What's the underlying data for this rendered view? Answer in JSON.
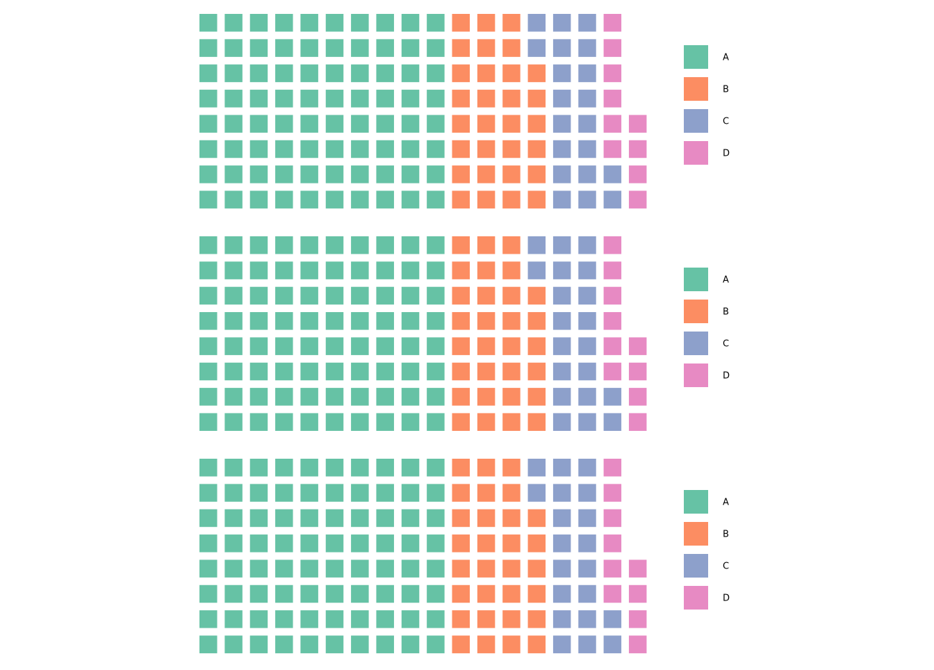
{
  "chart_data": [
    {
      "type": "waffle",
      "rows": 8,
      "categories": [
        "A",
        "B",
        "C",
        "D"
      ],
      "values": [
        80,
        30,
        20,
        10
      ],
      "legend": {
        "position": "right",
        "entries": [
          "A",
          "B",
          "C",
          "D"
        ]
      }
    },
    {
      "type": "waffle",
      "rows": 8,
      "categories": [
        "A",
        "B",
        "C",
        "D"
      ],
      "values": [
        80,
        30,
        20,
        10
      ],
      "legend": {
        "position": "right",
        "entries": [
          "A",
          "B",
          "C",
          "D"
        ]
      }
    },
    {
      "type": "waffle",
      "rows": 8,
      "categories": [
        "A",
        "B",
        "C",
        "D"
      ],
      "values": [
        80,
        30,
        20,
        10
      ],
      "legend": {
        "position": "right",
        "entries": [
          "A",
          "B",
          "C",
          "D"
        ]
      }
    }
  ],
  "colors": {
    "A": "#66c2a5",
    "B": "#fc8d62",
    "C": "#8da0cb",
    "D": "#e78ac3"
  }
}
